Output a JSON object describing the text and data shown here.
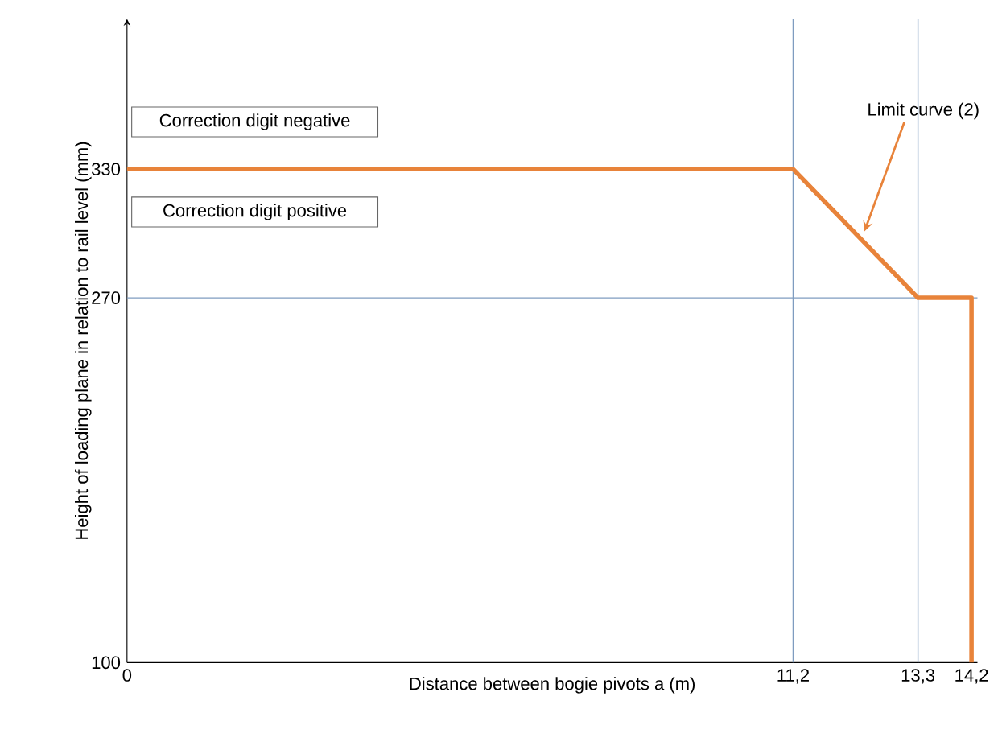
{
  "chart_data": {
    "type": "line",
    "xlabel": "Distance between bogie pivots a (m)",
    "ylabel": "Height of loading plane in relation to rail level (mm)",
    "x": [
      0,
      11.2,
      13.3,
      14.2,
      14.2
    ],
    "series": [
      {
        "color": "#e8833a",
        "values": [
          330,
          330,
          270,
          270,
          100
        ]
      }
    ],
    "xlim": [
      0,
      14.3
    ],
    "ylim": [
      100,
      400
    ],
    "xticks": [
      0,
      {
        "value": 11.2,
        "label": "11,2"
      },
      {
        "value": 13.3,
        "label": "13,3"
      },
      {
        "value": 14.2,
        "label": "14,2"
      }
    ],
    "yticks": [
      100,
      270,
      330
    ],
    "ref_lines": [
      {
        "axis": "x",
        "value": 11.2,
        "color": "#7f9cc0"
      },
      {
        "axis": "x",
        "value": 13.3,
        "color": "#7f9cc0"
      },
      {
        "axis": "y",
        "value": 270,
        "color": "#7f9cc0"
      }
    ],
    "annotations": [
      "Correction digit negative",
      "Correction digit positive",
      {
        "text": "Limit curve (2)",
        "x": 12.4,
        "y": 301
      }
    ],
    "marker": "none",
    "line_style": "solid"
  }
}
